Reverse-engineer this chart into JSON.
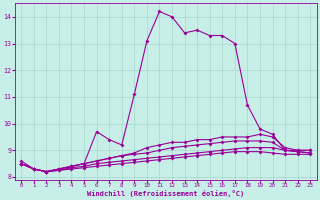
{
  "xlabel": "Windchill (Refroidissement éolien,°C)",
  "ylabel": "",
  "xlim": [
    -0.5,
    23.5
  ],
  "ylim": [
    7.9,
    14.5
  ],
  "yticks": [
    8,
    9,
    10,
    11,
    12,
    13,
    14
  ],
  "xticks": [
    0,
    1,
    2,
    3,
    4,
    5,
    6,
    7,
    8,
    9,
    10,
    11,
    12,
    13,
    14,
    15,
    16,
    17,
    18,
    19,
    20,
    21,
    22,
    23
  ],
  "bg_color": "#c8eee8",
  "grid_color": "#a8d8cc",
  "line_color": "#990099",
  "line1_x": [
    0,
    1,
    2,
    3,
    4,
    5,
    6,
    7,
    8,
    9,
    10,
    11,
    12,
    13,
    14,
    15,
    16,
    17,
    18,
    19,
    20,
    21,
    22,
    23
  ],
  "line1_y": [
    8.6,
    8.3,
    8.2,
    8.3,
    8.4,
    8.5,
    9.7,
    9.4,
    9.2,
    11.1,
    13.1,
    14.2,
    14.0,
    13.4,
    13.5,
    13.3,
    13.3,
    13.0,
    10.7,
    9.8,
    9.6,
    9.0,
    9.0,
    9.0
  ],
  "line2_x": [
    0,
    1,
    2,
    3,
    4,
    5,
    6,
    7,
    8,
    9,
    10,
    11,
    12,
    13,
    14,
    15,
    16,
    17,
    18,
    19,
    20,
    21,
    22,
    23
  ],
  "line2_y": [
    8.5,
    8.3,
    8.2,
    8.3,
    8.4,
    8.5,
    8.6,
    8.7,
    8.8,
    8.9,
    9.1,
    9.2,
    9.3,
    9.3,
    9.4,
    9.4,
    9.5,
    9.5,
    9.5,
    9.6,
    9.5,
    9.1,
    9.0,
    9.0
  ],
  "line3_x": [
    0,
    1,
    2,
    3,
    4,
    5,
    6,
    7,
    8,
    9,
    10,
    11,
    12,
    13,
    14,
    15,
    16,
    17,
    18,
    19,
    20,
    21,
    22,
    23
  ],
  "line3_y": [
    8.5,
    8.3,
    8.2,
    8.3,
    8.4,
    8.5,
    8.6,
    8.7,
    8.8,
    8.85,
    8.9,
    9.0,
    9.1,
    9.15,
    9.2,
    9.25,
    9.3,
    9.35,
    9.35,
    9.35,
    9.3,
    9.0,
    8.95,
    8.9
  ],
  "line4_x": [
    0,
    1,
    2,
    3,
    4,
    5,
    6,
    7,
    8,
    9,
    10,
    11,
    12,
    13,
    14,
    15,
    16,
    17,
    18,
    19,
    20,
    21,
    22,
    23
  ],
  "line4_y": [
    8.5,
    8.3,
    8.2,
    8.25,
    8.35,
    8.4,
    8.5,
    8.55,
    8.6,
    8.65,
    8.7,
    8.75,
    8.8,
    8.85,
    8.9,
    8.95,
    9.0,
    9.05,
    9.1,
    9.1,
    9.1,
    9.0,
    8.95,
    8.9
  ],
  "line5_x": [
    0,
    1,
    2,
    3,
    4,
    5,
    6,
    7,
    8,
    9,
    10,
    11,
    12,
    13,
    14,
    15,
    16,
    17,
    18,
    19,
    20,
    21,
    22,
    23
  ],
  "line5_y": [
    8.5,
    8.3,
    8.2,
    8.25,
    8.3,
    8.35,
    8.4,
    8.45,
    8.5,
    8.55,
    8.6,
    8.65,
    8.7,
    8.75,
    8.8,
    8.85,
    8.9,
    8.95,
    8.95,
    8.95,
    8.9,
    8.85,
    8.85,
    8.85
  ]
}
